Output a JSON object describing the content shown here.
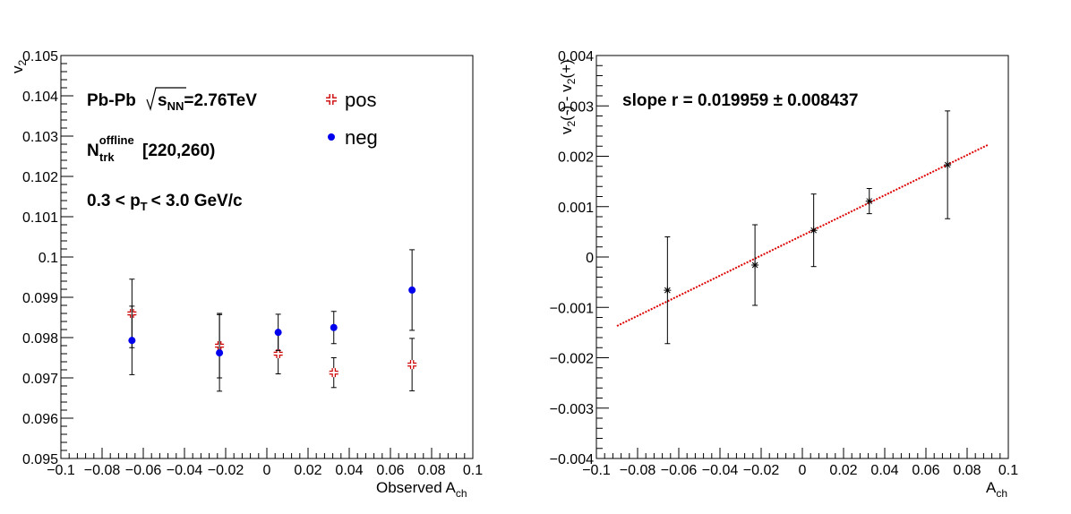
{
  "chart_data": [
    {
      "type": "scatter",
      "title": "",
      "xlabel": "Observed A",
      "xlabel_sub": "ch",
      "ylabel": "v",
      "ylabel_sub": "2",
      "xlim": [
        -0.1,
        0.1
      ],
      "ylim": [
        0.095,
        0.105
      ],
      "x_ticks": [
        "−0.1",
        "−0.08",
        "−0.06",
        "−0.04",
        "−0.02",
        "0",
        "0.02",
        "0.04",
        "0.06",
        "0.08",
        "0.1"
      ],
      "y_ticks": [
        "0.095",
        "0.096",
        "0.097",
        "0.098",
        "0.099",
        "0.1",
        "0.101",
        "0.102",
        "0.103",
        "0.104",
        "0.105"
      ],
      "grid": false,
      "annotations": {
        "system": "Pb-Pb",
        "sqrt_label": "s",
        "sqrt_sub": "NN",
        "energy": "=2.76TeV",
        "ntrk_main": "N",
        "ntrk_sup": "offline",
        "ntrk_sub": "trk",
        "ntrk_range": "[220,260)",
        "pt_pre": "0.3 < p",
        "pt_sub": "T",
        "pt_post": "< 3.0 GeV/c"
      },
      "legend": {
        "placement": "top-right",
        "entries": [
          "pos",
          "neg"
        ]
      },
      "series": [
        {
          "name": "pos",
          "color": "#cc0000",
          "marker": "open-cross",
          "points": [
            {
              "x": -0.0655,
              "y": 0.0986,
              "err": 0.00085
            },
            {
              "x": -0.023,
              "y": 0.0978,
              "err": 0.0008
            },
            {
              "x": 0.0055,
              "y": 0.0976,
              "err": 0.0005
            },
            {
              "x": 0.0325,
              "y": 0.09713,
              "err": 0.00037
            },
            {
              "x": 0.0705,
              "y": 0.09733,
              "err": 0.00065
            }
          ]
        },
        {
          "name": "neg",
          "color": "#0000ee",
          "marker": "filled-circle",
          "points": [
            {
              "x": -0.0655,
              "y": 0.09793,
              "err": 0.00085
            },
            {
              "x": -0.023,
              "y": 0.09762,
              "err": 0.00095
            },
            {
              "x": 0.0055,
              "y": 0.09813,
              "err": 0.00045
            },
            {
              "x": 0.0325,
              "y": 0.09825,
              "err": 0.0004
            },
            {
              "x": 0.0705,
              "y": 0.09918,
              "err": 0.001
            }
          ]
        }
      ]
    },
    {
      "type": "scatter",
      "title": "",
      "xlabel": "A",
      "xlabel_sub": "ch",
      "ylabel_parts": [
        "v",
        "2",
        "(-) - v",
        "2",
        "(+)"
      ],
      "xlim": [
        -0.1,
        0.1
      ],
      "ylim": [
        -0.004,
        0.004
      ],
      "x_ticks": [
        "−0.1",
        "−0.08",
        "−0.06",
        "−0.04",
        "−0.02",
        "0",
        "0.02",
        "0.04",
        "0.06",
        "0.08",
        "0.1"
      ],
      "y_ticks": [
        "−0.004",
        "−0.003",
        "−0.002",
        "−0.001",
        "0",
        "0.001",
        "0.002",
        "0.003",
        "0.004"
      ],
      "grid": false,
      "annotation": "slope r = 0.019959 ± 0.008437",
      "fit": {
        "color": "#dd0000",
        "x": [
          -0.09,
          0.09
        ],
        "slope": 0.019959,
        "intercept": 0.000428
      },
      "series": [
        {
          "name": "",
          "color": "#000000",
          "marker": "asterisk",
          "points": [
            {
              "x": -0.0655,
              "y": -0.00066,
              "err": 0.00106
            },
            {
              "x": -0.023,
              "y": -0.00016,
              "err": 0.0008
            },
            {
              "x": 0.0055,
              "y": 0.00053,
              "err": 0.00072
            },
            {
              "x": 0.0325,
              "y": 0.00111,
              "err": 0.00025
            },
            {
              "x": 0.0705,
              "y": 0.00183,
              "err": 0.00107
            }
          ]
        }
      ]
    }
  ]
}
